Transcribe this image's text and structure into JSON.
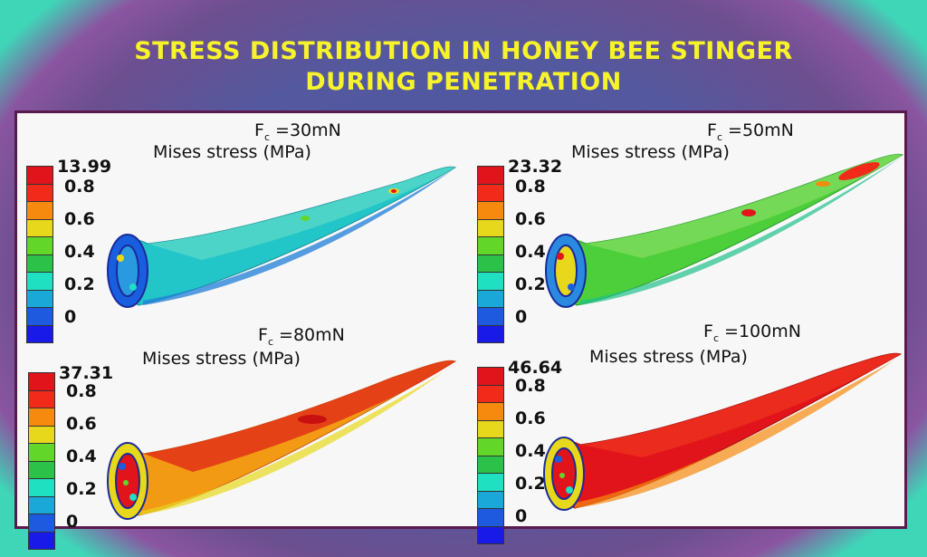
{
  "title_line1": "STRESS DISTRIBUTION IN HONEY BEE STINGER",
  "title_line2": "DURING PENETRATION",
  "colors": {
    "scale": [
      "#e0141a",
      "#f22a1a",
      "#f58a0e",
      "#e8d81c",
      "#63d62a",
      "#2cc24a",
      "#1fe0c0",
      "#1aa8d8",
      "#1e5ae0",
      "#1a1ae8"
    ],
    "title": "#f7f32a",
    "frame": "#5b1a4c"
  },
  "panels": [
    {
      "f_label": "F",
      "f_sub": "c",
      "f_value": " =30mN",
      "mises": "Mises stress (MPa)",
      "max": "13.99",
      "ticks": [
        "0.8",
        "0.6",
        "0.4",
        "0.2",
        "0"
      ],
      "dominant": "cyan"
    },
    {
      "f_label": "F",
      "f_sub": "c",
      "f_value": " =50mN",
      "mises": "Mises stress (MPa)",
      "max": "23.32",
      "ticks": [
        "0.8",
        "0.6",
        "0.4",
        "0.2",
        "0"
      ],
      "dominant": "green"
    },
    {
      "f_label": "F",
      "f_sub": "c",
      "f_value": " =80mN",
      "mises": "Mises stress (MPa)",
      "max": "37.31",
      "ticks": [
        "0.8",
        "0.6",
        "0.4",
        "0.2",
        "0"
      ],
      "dominant": "orange"
    },
    {
      "f_label": "F",
      "f_sub": "c",
      "f_value": " =100mN",
      "mises": "Mises stress (MPa)",
      "max": "46.64",
      "ticks": [
        "0.8",
        "0.6",
        "0.4",
        "0.2",
        "0"
      ],
      "dominant": "red"
    }
  ]
}
